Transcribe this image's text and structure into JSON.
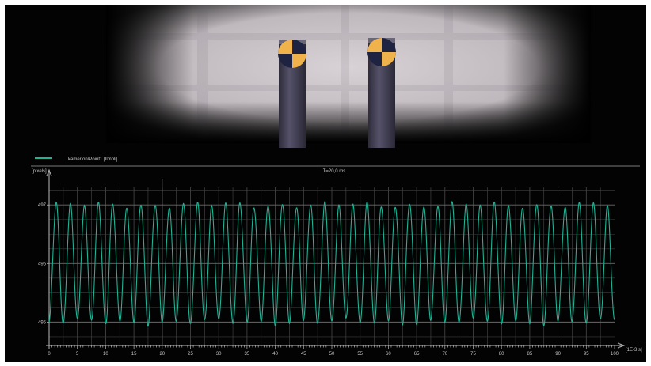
{
  "camera": {
    "targets": [
      {
        "name": "marker-left",
        "pattern": "checkerboard-quadrant"
      },
      {
        "name": "marker-right",
        "pattern": "checkerboard-quadrant"
      }
    ]
  },
  "legend": {
    "label": "kamerion/Point1 [Ilmoli]",
    "color": "#1fb394"
  },
  "plot": {
    "y_unit": "[pixels]",
    "x_unit": "[1E-3 s]",
    "window_label": "T=20,0 ms"
  },
  "chart_data": {
    "type": "line",
    "x_ticks": [
      0,
      5,
      10,
      15,
      20,
      25,
      30,
      35,
      40,
      45,
      50,
      55,
      60,
      65,
      70,
      75,
      80,
      85,
      90,
      95,
      100
    ],
    "y_ticks": [
      495,
      496,
      497
    ],
    "xlim": [
      0,
      100
    ],
    "ylim": [
      494.6,
      497.3
    ],
    "grid": true,
    "series": [
      {
        "name": "kamerion/Point1 [Ilmoli]",
        "color": "#1fb394",
        "signal": {
          "period": 2.5,
          "center": 496.0,
          "amplitude": 1.0,
          "phase_start": 0.0
        }
      }
    ]
  }
}
